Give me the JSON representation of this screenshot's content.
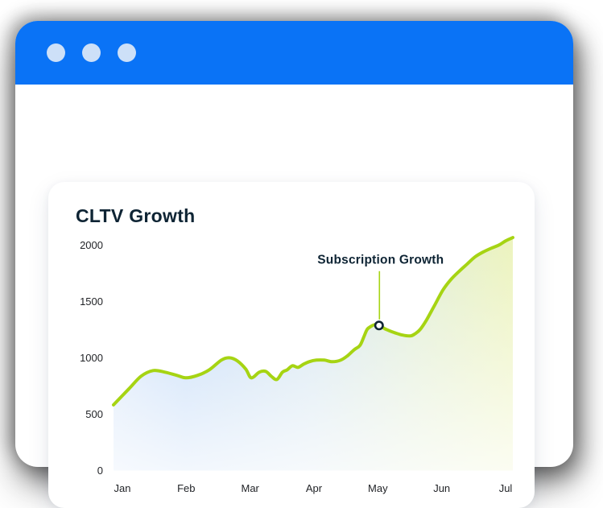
{
  "window": {
    "dot_count": 3
  },
  "colors": {
    "titlebar_blue": "#0a73f6",
    "window_dot": "#cde0f8",
    "accent_lime": "#a6d413",
    "heading_navy": "#0e2434",
    "axis_text": "#1f2125",
    "marker_ring": "#102434",
    "fill_gradient": [
      "#d4e4f9",
      "#bfd8f7",
      "#d3e4ef",
      "#e2eed2",
      "#ecf3bd"
    ]
  },
  "chart_data": {
    "type": "area",
    "title": "CLTV Growth",
    "x_ticks": [
      "Jan",
      "Feb",
      "Mar",
      "Apr",
      "May",
      "Jun",
      "Jul"
    ],
    "y_ticks": [
      0,
      500,
      1000,
      1500,
      2000
    ],
    "y_tick_labels": [
      "2000",
      "1500",
      "1000",
      "500",
      "0"
    ],
    "ylim": [
      0,
      2000
    ],
    "grid": false,
    "legend": false,
    "monthly_values_approx": [
      660,
      823,
      833,
      980,
      1290,
      1600,
      2040
    ],
    "annotation": {
      "label": "Subscription Growth",
      "x_frac": 0.665,
      "value": 1287
    },
    "points_xfrac_value": [
      [
        0.0,
        583
      ],
      [
        0.038,
        723
      ],
      [
        0.069,
        837
      ],
      [
        0.099,
        887
      ],
      [
        0.129,
        873
      ],
      [
        0.159,
        844
      ],
      [
        0.181,
        823
      ],
      [
        0.21,
        844
      ],
      [
        0.24,
        894
      ],
      [
        0.27,
        980
      ],
      [
        0.29,
        1001
      ],
      [
        0.31,
        973
      ],
      [
        0.331,
        901
      ],
      [
        0.345,
        823
      ],
      [
        0.365,
        873
      ],
      [
        0.381,
        880
      ],
      [
        0.395,
        837
      ],
      [
        0.409,
        808
      ],
      [
        0.423,
        873
      ],
      [
        0.435,
        894
      ],
      [
        0.448,
        930
      ],
      [
        0.462,
        916
      ],
      [
        0.476,
        944
      ],
      [
        0.49,
        966
      ],
      [
        0.508,
        980
      ],
      [
        0.528,
        980
      ],
      [
        0.548,
        966
      ],
      [
        0.569,
        980
      ],
      [
        0.585,
        1016
      ],
      [
        0.603,
        1073
      ],
      [
        0.617,
        1109
      ],
      [
        0.627,
        1187
      ],
      [
        0.635,
        1252
      ],
      [
        0.645,
        1280
      ],
      [
        0.655,
        1295
      ],
      [
        0.665,
        1287
      ],
      [
        0.683,
        1252
      ],
      [
        0.704,
        1223
      ],
      [
        0.724,
        1202
      ],
      [
        0.744,
        1195
      ],
      [
        0.756,
        1216
      ],
      [
        0.768,
        1252
      ],
      [
        0.784,
        1337
      ],
      [
        0.804,
        1466
      ],
      [
        0.825,
        1602
      ],
      [
        0.845,
        1695
      ],
      [
        0.865,
        1766
      ],
      [
        0.885,
        1831
      ],
      [
        0.905,
        1895
      ],
      [
        0.925,
        1938
      ],
      [
        0.946,
        1973
      ],
      [
        0.966,
        2002
      ],
      [
        0.982,
        2038
      ],
      [
        1.0,
        2067
      ]
    ]
  }
}
